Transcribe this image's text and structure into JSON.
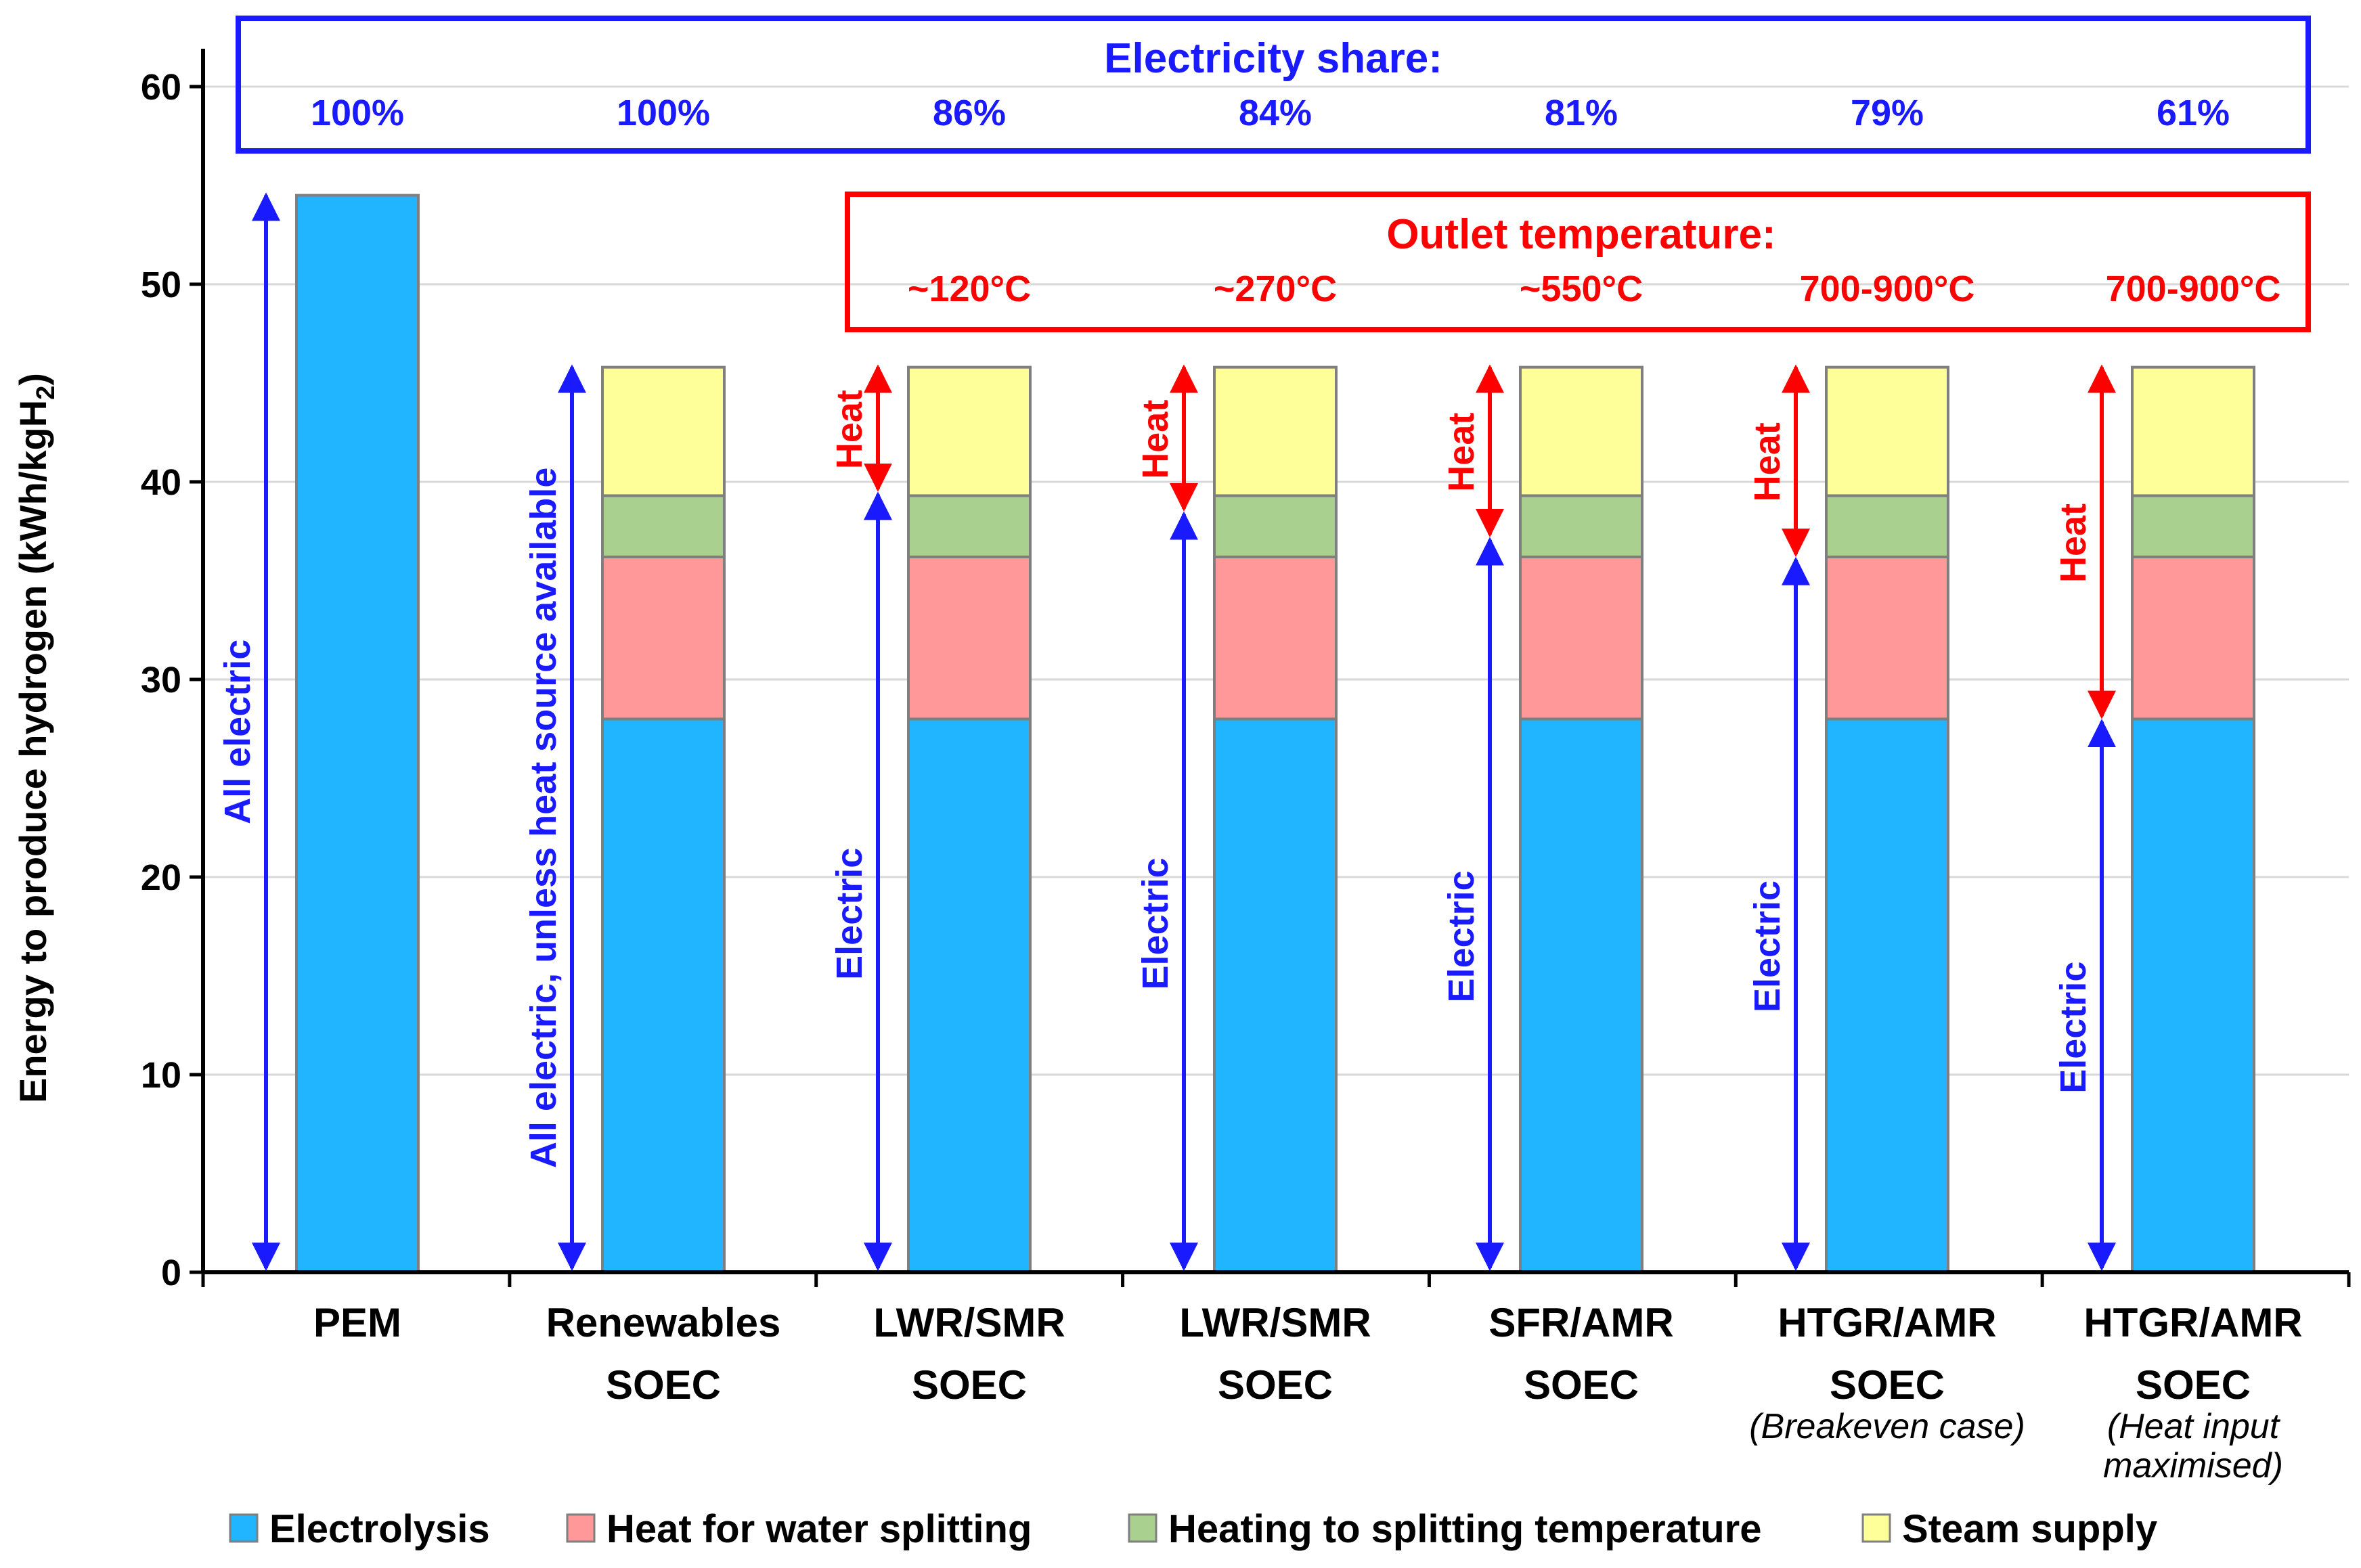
{
  "chart_data": {
    "type": "bar",
    "stacked": true,
    "ylabel": "Energy to produce hydrogen (kWh/kgH",
    "ylabel_sub": "2",
    "ylabel_close": ")",
    "ylim": [
      0,
      60
    ],
    "yticks": [
      "0",
      "10",
      "20",
      "30",
      "40",
      "50",
      "60"
    ],
    "ytick_values": [
      0,
      10,
      20,
      30,
      40,
      50,
      60
    ],
    "categories": [
      {
        "line1": "PEM",
        "line2": "",
        "note1": "",
        "note2": ""
      },
      {
        "line1": "Renewables",
        "line2": "SOEC",
        "note1": "",
        "note2": ""
      },
      {
        "line1": "LWR/SMR",
        "line2": "SOEC",
        "note1": "",
        "note2": ""
      },
      {
        "line1": "LWR/SMR",
        "line2": "SOEC",
        "note1": "",
        "note2": ""
      },
      {
        "line1": "SFR/AMR",
        "line2": "SOEC",
        "note1": "",
        "note2": ""
      },
      {
        "line1": "HTGR/AMR",
        "line2": "SOEC",
        "note1": "(Breakeven case)",
        "note2": ""
      },
      {
        "line1": "HTGR/AMR",
        "line2": "SOEC",
        "note1": "(Heat input",
        "note2": "maximised)"
      }
    ],
    "series": [
      {
        "name": "Electrolysis",
        "color": "#22b5ff",
        "values": [
          54.5,
          28.0,
          28.0,
          28.0,
          28.0,
          28.0,
          28.0
        ]
      },
      {
        "name": "Heat for water splitting",
        "color": "#ff9999",
        "values": [
          0,
          8.2,
          8.2,
          8.2,
          8.2,
          8.2,
          8.2
        ]
      },
      {
        "name": "Heating to splitting temperature",
        "color": "#a9d08e",
        "values": [
          0,
          3.1,
          3.1,
          3.1,
          3.1,
          3.1,
          3.1
        ]
      },
      {
        "name": "Steam supply",
        "color": "#ffff99",
        "values": [
          0,
          6.5,
          6.5,
          6.5,
          6.5,
          6.5,
          6.5
        ]
      }
    ],
    "electricity_share": {
      "title": "Electricity share:",
      "values": [
        "100%",
        "100%",
        "86%",
        "84%",
        "81%",
        "79%",
        "61%"
      ]
    },
    "outlet_temperature": {
      "title": "Outlet temperature:",
      "values": [
        "",
        "",
        "~120°C",
        "~270°C",
        "~550°C",
        "700-900°C",
        "700-900°C"
      ]
    },
    "annotations": [
      {
        "label": "All electric",
        "split": null
      },
      {
        "label": "All electric, unless heat source available",
        "split": null
      },
      {
        "label": "Electric",
        "heat_label": "Heat",
        "split": 39.5
      },
      {
        "label": "Electric",
        "heat_label": "Heat",
        "split": 38.5
      },
      {
        "label": "Electric",
        "heat_label": "Heat",
        "split": 37.2
      },
      {
        "label": "Electric",
        "heat_label": "Heat",
        "split": 36.2
      },
      {
        "label": "Electric",
        "heat_label": "Heat",
        "split": 28.0
      }
    ]
  },
  "colors": {
    "blue": "#1a1aff",
    "red": "#ff0000",
    "axis": "#000000",
    "grid": "#d9d9d9",
    "bar_edge": "#7f7f7f"
  }
}
